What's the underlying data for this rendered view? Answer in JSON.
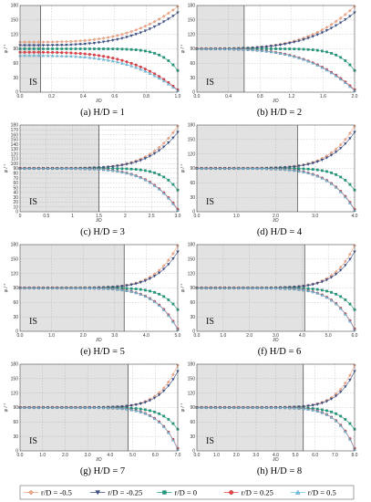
{
  "legend": {
    "items": [
      {
        "text": "r/D = -0.5",
        "color": "#f4a582",
        "marker": "diamond"
      },
      {
        "text": "r/D = -0.25",
        "color": "#3d4f8c",
        "marker": "triangle-down"
      },
      {
        "text": "r/D = 0",
        "color": "#1a9c7e",
        "marker": "square"
      },
      {
        "text": "r/D = 0.25",
        "color": "#e8414a",
        "marker": "circle"
      },
      {
        "text": "r/D = 0.5",
        "color": "#6ec4e8",
        "marker": "triangle-up"
      }
    ]
  },
  "chart_data": [
    {
      "type": "scatter",
      "caption": "(a) H/D = 1",
      "xlabel": "l/D",
      "ylabel": "φ / °",
      "xlim": [
        0,
        1
      ],
      "ylim": [
        0,
        180
      ],
      "xticks": [
        "0.0",
        "0.2",
        "0.4",
        "0.6",
        "0.8",
        "1.0"
      ],
      "yticks": [
        "0",
        "30",
        "60",
        "90",
        "120",
        "150",
        "180"
      ],
      "is_label": "IS",
      "is_end": 0.13
    },
    {
      "type": "scatter",
      "caption": "(b) H/D = 2",
      "xlabel": "l/D",
      "ylabel": "φ / °",
      "xlim": [
        0,
        2
      ],
      "ylim": [
        0,
        180
      ],
      "xticks": [
        "0.0",
        "0.4",
        "0.8",
        "1.2",
        "1.6",
        "2.0"
      ],
      "yticks": [
        "0",
        "30",
        "60",
        "90",
        "120",
        "150",
        "180"
      ],
      "is_label": "IS",
      "is_end": 0.6
    },
    {
      "type": "scatter",
      "caption": "(c) H/D = 3",
      "xlabel": "l/D",
      "ylabel": "φ / °",
      "xlim": [
        0,
        3
      ],
      "ylim": [
        0,
        180
      ],
      "xticks": [
        "0",
        "0.5",
        "1",
        "1.5",
        "2",
        "2.5",
        "3.0"
      ],
      "yticks": [
        "0",
        "10",
        "20",
        "30",
        "40",
        "50",
        "60",
        "70",
        "80",
        "90",
        "100",
        "110",
        "120",
        "130",
        "140",
        "150",
        "160",
        "170",
        "180"
      ],
      "is_label": "IS",
      "is_end": 1.5
    },
    {
      "type": "scatter",
      "caption": "(d) H/D = 4",
      "xlabel": "l/D",
      "ylabel": "φ / °",
      "xlim": [
        0,
        4
      ],
      "ylim": [
        0,
        180
      ],
      "xticks": [
        "0.0",
        "1.0",
        "2.0",
        "3.0",
        "4.0"
      ],
      "yticks": [
        "0",
        "30",
        "60",
        "90",
        "120",
        "150",
        "180"
      ],
      "is_label": "IS",
      "is_end": 2.55
    },
    {
      "type": "scatter",
      "caption": "(e) H/D = 5",
      "xlabel": "l/D",
      "ylabel": "φ / °",
      "xlim": [
        0,
        5
      ],
      "ylim": [
        0,
        180
      ],
      "xticks": [
        "0.0",
        "1.0",
        "2.0",
        "3.0",
        "4.0",
        "5.0"
      ],
      "yticks": [
        "0",
        "30",
        "60",
        "90",
        "120",
        "150",
        "180"
      ],
      "is_label": "IS",
      "is_end": 3.3
    },
    {
      "type": "scatter",
      "caption": "(f) H/D = 6",
      "xlabel": "l/D",
      "ylabel": "φ / °",
      "xlim": [
        0,
        6
      ],
      "ylim": [
        0,
        180
      ],
      "xticks": [
        "0.0",
        "1.0",
        "2.0",
        "3.0",
        "4.0",
        "5.0",
        "6.0"
      ],
      "yticks": [
        "0",
        "30",
        "60",
        "90",
        "120",
        "150",
        "180"
      ],
      "is_label": "IS",
      "is_end": 4.1
    },
    {
      "type": "scatter",
      "caption": "(g) H/D = 7",
      "xlabel": "l/D",
      "ylabel": "φ / °",
      "xlim": [
        0,
        7
      ],
      "ylim": [
        0,
        180
      ],
      "xticks": [
        "0.0",
        "1.0",
        "2.0",
        "3.0",
        "4.0",
        "5.0",
        "6.0",
        "7.0"
      ],
      "yticks": [
        "0",
        "30",
        "60",
        "90",
        "120",
        "150",
        "180"
      ],
      "is_label": "IS",
      "is_end": 4.8
    },
    {
      "type": "scatter",
      "caption": "(h) H/D = 8",
      "xlabel": "l/D",
      "ylabel": "φ / °",
      "xlim": [
        0,
        8
      ],
      "ylim": [
        0,
        180
      ],
      "xticks": [
        "0.0",
        "1.0",
        "2.0",
        "3.0",
        "4.0",
        "5.0",
        "6.0",
        "7.0",
        "8.0"
      ],
      "yticks": [
        "0",
        "30",
        "60",
        "90",
        "120",
        "150",
        "180"
      ],
      "is_label": "IS",
      "is_end": 5.4
    }
  ]
}
